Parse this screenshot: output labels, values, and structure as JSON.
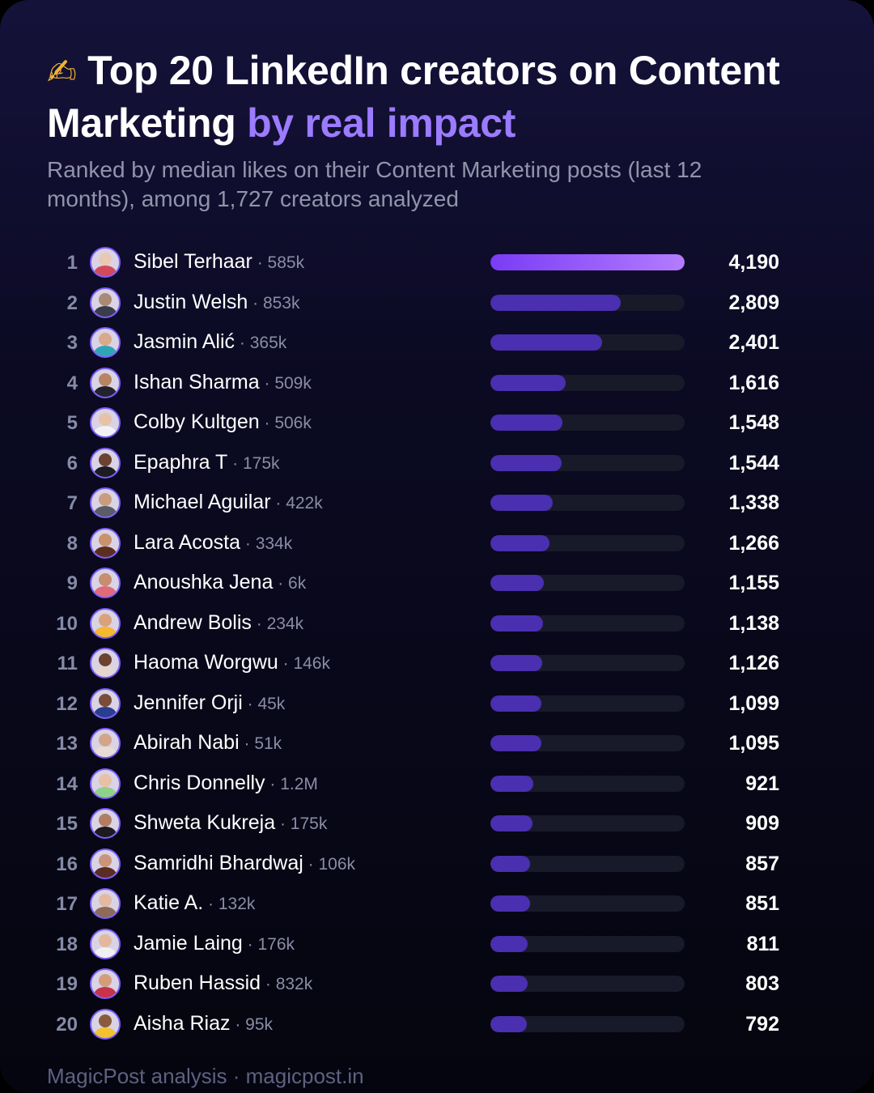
{
  "header": {
    "emoji": "✍",
    "title_part1": "Top 20 LinkedIn creators on Content Marketing",
    "title_highlight": "by real impact",
    "subtitle": "Ranked by median likes on their Content Marketing posts (last 12 months), among 1,727 creators analyzed"
  },
  "footer": "MagicPost analysis · magicpost.in",
  "colors": {
    "accent": "#9b7bff",
    "bar_top": "#b47cff",
    "bar": "#4a2fb0",
    "track": "#181a2a"
  },
  "separator": " · ",
  "chart_data": {
    "type": "bar",
    "orientation": "horizontal",
    "title": "Top 20 LinkedIn creators on Content Marketing by real impact",
    "xlim": [
      0,
      4190
    ],
    "rows": [
      {
        "rank": "1",
        "name": "Sibel Terhaar",
        "followers": "585k",
        "value": 4190,
        "value_label": "4,190",
        "avatar": [
          "#e9c9b5",
          "#d24a5b"
        ]
      },
      {
        "rank": "2",
        "name": "Justin Welsh",
        "followers": "853k",
        "value": 2809,
        "value_label": "2,809",
        "avatar": [
          "#a98a76",
          "#3a3d4a"
        ]
      },
      {
        "rank": "3",
        "name": "Jasmin Alić",
        "followers": "365k",
        "value": 2401,
        "value_label": "2,401",
        "avatar": [
          "#d9a98c",
          "#2fa4b5"
        ]
      },
      {
        "rank": "4",
        "name": "Ishan Sharma",
        "followers": "509k",
        "value": 1616,
        "value_label": "1,616",
        "avatar": [
          "#b88464",
          "#22232c"
        ]
      },
      {
        "rank": "5",
        "name": "Colby Kultgen",
        "followers": "506k",
        "value": 1548,
        "value_label": "1,548",
        "avatar": [
          "#e6c2a9",
          "#f2f2f2"
        ]
      },
      {
        "rank": "6",
        "name": "Epaphra T",
        "followers": "175k",
        "value": 1544,
        "value_label": "1,544",
        "avatar": [
          "#6b4330",
          "#1c1c22"
        ]
      },
      {
        "rank": "7",
        "name": "Michael Aguilar",
        "followers": "422k",
        "value": 1338,
        "value_label": "1,338",
        "avatar": [
          "#c99c80",
          "#5a5c66"
        ]
      },
      {
        "rank": "8",
        "name": "Lara Acosta",
        "followers": "334k",
        "value": 1266,
        "value_label": "1,266",
        "avatar": [
          "#c8926e",
          "#5b2e22"
        ]
      },
      {
        "rank": "9",
        "name": "Anoushka Jena",
        "followers": "6k",
        "value": 1155,
        "value_label": "1,155",
        "avatar": [
          "#c78d71",
          "#e16a7a"
        ]
      },
      {
        "rank": "10",
        "name": "Andrew Bolis",
        "followers": "234k",
        "value": 1138,
        "value_label": "1,138",
        "avatar": [
          "#d9a27c",
          "#f5b82e"
        ]
      },
      {
        "rank": "11",
        "name": "Haoma Worgwu",
        "followers": "146k",
        "value": 1126,
        "value_label": "1,126",
        "avatar": [
          "#6e4231",
          "#e5d6cf"
        ]
      },
      {
        "rank": "12",
        "name": "Jennifer Orji",
        "followers": "45k",
        "value": 1099,
        "value_label": "1,099",
        "avatar": [
          "#7a4c3a",
          "#2a3d8f"
        ]
      },
      {
        "rank": "13",
        "name": "Abirah Nabi",
        "followers": "51k",
        "value": 1095,
        "value_label": "1,095",
        "avatar": [
          "#d2a58a",
          "#e9dcd4"
        ]
      },
      {
        "rank": "14",
        "name": "Chris Donnelly",
        "followers": "1.2M",
        "value": 921,
        "value_label": "921",
        "avatar": [
          "#e7c0a5",
          "#8fd18a"
        ]
      },
      {
        "rank": "15",
        "name": "Shweta Kukreja",
        "followers": "175k",
        "value": 909,
        "value_label": "909",
        "avatar": [
          "#b27e63",
          "#1d1a20"
        ]
      },
      {
        "rank": "16",
        "name": "Samridhi Bhardwaj",
        "followers": "106k",
        "value": 857,
        "value_label": "857",
        "avatar": [
          "#c9957a",
          "#5a2c24"
        ]
      },
      {
        "rank": "17",
        "name": "Katie A.",
        "followers": "132k",
        "value": 851,
        "value_label": "851",
        "avatar": [
          "#e3b9a1",
          "#8c6b5a"
        ]
      },
      {
        "rank": "18",
        "name": "Jamie Laing",
        "followers": "176k",
        "value": 811,
        "value_label": "811",
        "avatar": [
          "#e1b89d",
          "#f0f0f0"
        ]
      },
      {
        "rank": "19",
        "name": "Ruben Hassid",
        "followers": "832k",
        "value": 803,
        "value_label": "803",
        "avatar": [
          "#d59c7c",
          "#c7334b"
        ]
      },
      {
        "rank": "20",
        "name": "Aisha Riaz",
        "followers": "95k",
        "value": 792,
        "value_label": "792",
        "avatar": [
          "#8a5a3e",
          "#f2c232"
        ]
      }
    ]
  }
}
